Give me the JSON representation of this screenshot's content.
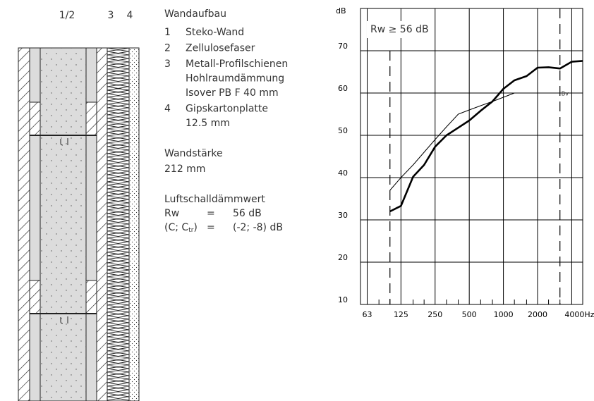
{
  "drawing": {
    "labels": [
      "1/2",
      "3",
      "4"
    ]
  },
  "description": {
    "title": "Wandaufbau",
    "layers": [
      {
        "number": "1",
        "lines": [
          "Steko-Wand"
        ]
      },
      {
        "number": "2",
        "lines": [
          "Zellulosefaser"
        ]
      },
      {
        "number": "3",
        "lines": [
          "Metall-Profilschienen",
          "Hohlraumdämmung",
          "Isover PB F 40 mm"
        ]
      },
      {
        "number": "4",
        "lines": [
          "Gipskartonplatte",
          "12.5 mm"
        ]
      }
    ],
    "thickness_label": "Wandstärke",
    "thickness": "212 mm",
    "sound_label": "Luftschalldämmwert",
    "sound_rows": [
      {
        "name": [
          "Rw"
        ],
        "eq": "=",
        "value": "56 dB"
      },
      {
        "name": [
          "(C; C",
          "tr",
          ")"
        ],
        "eq": "=",
        "value": "(-2; -8) dB"
      }
    ]
  },
  "chart_data": {
    "type": "line",
    "y_label": "dB",
    "annotation": "Rw ≥ 56 dB",
    "curve_label": "Bv",
    "log_x": true,
    "grid": true,
    "xlim": [
      55,
      5000
    ],
    "ylim": [
      10,
      80
    ],
    "xticks": [
      63,
      125,
      250,
      500,
      1000,
      2000,
      {
        "value": 4000,
        "label": "4000Hz"
      }
    ],
    "xminorticks": [
      80,
      100,
      160,
      200,
      315,
      400,
      630,
      800,
      1250,
      1600,
      2500,
      3150
    ],
    "yticks": [
      10,
      20,
      30,
      40,
      50,
      60,
      70
    ],
    "reference_x": [
      100,
      3150
    ],
    "x": [
      100,
      125,
      160,
      200,
      250,
      315,
      400,
      500,
      630,
      800,
      1000,
      1250,
      1600,
      2000,
      2500,
      3150,
      4000,
      5000
    ],
    "series": [
      {
        "color": "#000000",
        "line_width": 2.6,
        "values": [
          32,
          33.3,
          40.2,
          43,
          47.3,
          50,
          51.8,
          53.5,
          55.8,
          58,
          61,
          63,
          64,
          66,
          66.1,
          65.8,
          67.4,
          67.6
        ]
      },
      {
        "color": "#000000",
        "line_width": 1,
        "values": [
          37,
          40,
          43,
          46,
          49,
          52,
          55,
          56,
          57,
          58,
          59,
          60,
          60,
          60,
          60,
          60,
          null,
          null
        ]
      }
    ]
  }
}
